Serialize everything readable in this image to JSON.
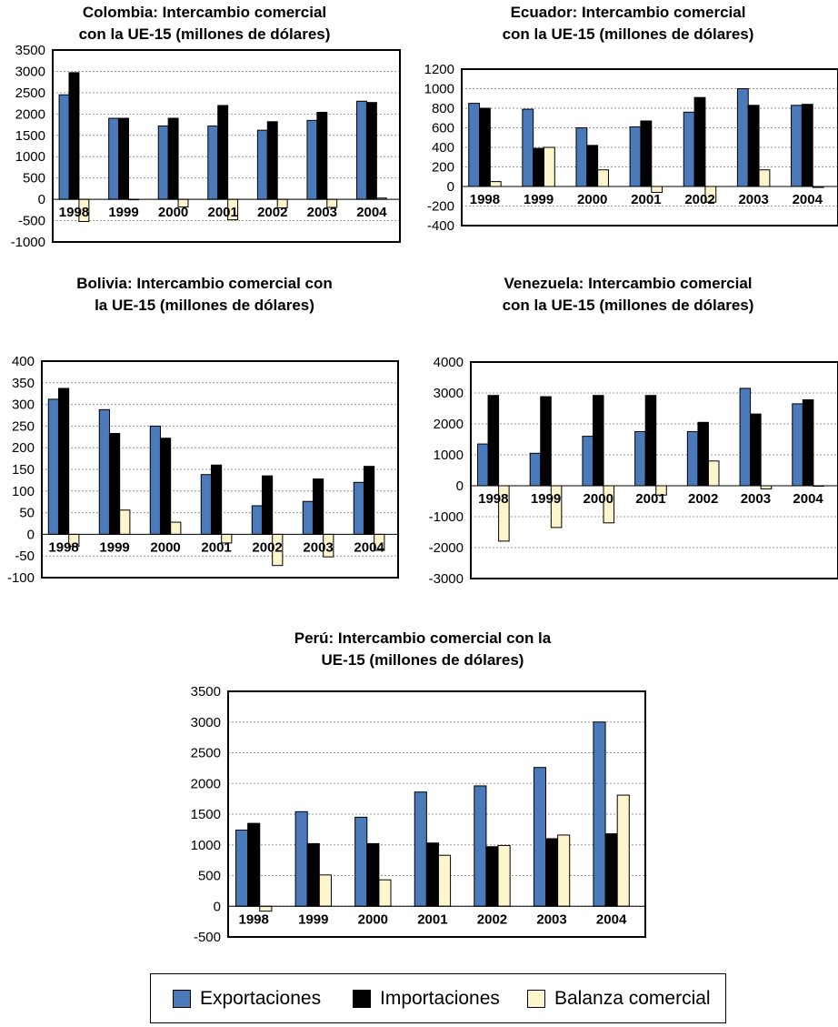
{
  "colors": {
    "exportaciones": "#4a7ab9",
    "importaciones": "#000000",
    "balanza": "#fdf5cc"
  },
  "legend": {
    "items": [
      {
        "label": "Exportaciones",
        "color": "#4a7ab9"
      },
      {
        "label": "Importaciones",
        "color": "#000000"
      },
      {
        "label": "Balanza comercial",
        "color": "#fdf5cc"
      }
    ]
  },
  "chart_data": [
    {
      "type": "bar",
      "title_lines": [
        "Colombia: Intercambio comercial",
        "con la UE-15 (millones de dólares)"
      ],
      "categories": [
        "1998",
        "1999",
        "2000",
        "2001",
        "2002",
        "2003",
        "2004"
      ],
      "ylim": [
        -1000,
        3500
      ],
      "ystep": 500,
      "yticks": [
        "3500",
        "3000",
        "2500",
        "2000",
        "1500",
        "1000",
        "500",
        "0",
        "-500",
        "-1000"
      ],
      "series": [
        {
          "name": "Exportaciones",
          "values": [
            2450,
            1900,
            1720,
            1720,
            1620,
            1850,
            2300
          ]
        },
        {
          "name": "Importaciones",
          "values": [
            2970,
            1900,
            1900,
            2200,
            1820,
            2040,
            2270
          ]
        },
        {
          "name": "Balanza comercial",
          "values": [
            -520,
            -10,
            -180,
            -480,
            -200,
            -190,
            30
          ]
        }
      ]
    },
    {
      "type": "bar",
      "title_lines": [
        "Ecuador: Intercambio comercial",
        "con la UE-15 (millones de dólares)"
      ],
      "categories": [
        "1998",
        "1999",
        "2000",
        "2001",
        "2002",
        "2003",
        "2004"
      ],
      "ylim": [
        -400,
        1200
      ],
      "ystep": 200,
      "yticks": [
        "1200",
        "1000",
        "800",
        "600",
        "400",
        "200",
        "0",
        "-200",
        "-400"
      ],
      "series": [
        {
          "name": "Exportaciones",
          "values": [
            850,
            790,
            600,
            610,
            760,
            1000,
            830
          ]
        },
        {
          "name": "Importaciones",
          "values": [
            800,
            390,
            420,
            670,
            910,
            830,
            840
          ]
        },
        {
          "name": "Balanza comercial",
          "values": [
            50,
            400,
            170,
            -60,
            -160,
            170,
            -10
          ]
        }
      ]
    },
    {
      "type": "bar",
      "title_lines": [
        "Bolivia: Intercambio comercial con",
        "la UE-15  (millones de dólares)"
      ],
      "categories": [
        "1998",
        "1999",
        "2000",
        "2001",
        "2002",
        "2003",
        "2004"
      ],
      "ylim": [
        -100,
        400
      ],
      "ystep": 50,
      "yticks": [
        "400",
        "350",
        "300",
        "250",
        "200",
        "150",
        "100",
        "50",
        "0",
        "-50",
        "-100"
      ],
      "series": [
        {
          "name": "Exportaciones",
          "values": [
            312,
            288,
            250,
            138,
            66,
            76,
            120
          ]
        },
        {
          "name": "Importaciones",
          "values": [
            337,
            233,
            222,
            160,
            135,
            128,
            157
          ]
        },
        {
          "name": "Balanza comercial",
          "values": [
            -28,
            56,
            28,
            -20,
            -72,
            -52,
            -37
          ]
        }
      ]
    },
    {
      "type": "bar",
      "title_lines": [
        "Venezuela: Intercambio comercial",
        "con la UE-15 (millones de dólares)"
      ],
      "categories": [
        "1998",
        "1999",
        "2000",
        "2001",
        "2002",
        "2003",
        "2004"
      ],
      "ylim": [
        -3000,
        4000
      ],
      "ystep": 1000,
      "yticks": [
        "4000",
        "3000",
        "2000",
        "1000",
        "0",
        "-1000",
        "-2000",
        "-3000"
      ],
      "series": [
        {
          "name": "Exportaciones",
          "values": [
            1350,
            1050,
            1600,
            1750,
            1750,
            3150,
            2650
          ]
        },
        {
          "name": "Importaciones",
          "values": [
            2920,
            2880,
            2920,
            2920,
            2050,
            2320,
            2780
          ]
        },
        {
          "name": "Balanza comercial",
          "values": [
            -1790,
            -1350,
            -1200,
            -300,
            800,
            -100,
            0
          ]
        }
      ]
    },
    {
      "type": "bar",
      "title_lines": [
        "Perú: Intercambio comercial con la",
        "UE-15 (millones de dólares)"
      ],
      "categories": [
        "1998",
        "1999",
        "2000",
        "2001",
        "2002",
        "2003",
        "2004"
      ],
      "ylim": [
        -500,
        3500
      ],
      "ystep": 500,
      "yticks": [
        "3500",
        "3000",
        "2500",
        "2000",
        "1500",
        "1000",
        "500",
        "0",
        "-500"
      ],
      "series": [
        {
          "name": "Exportaciones",
          "values": [
            1240,
            1540,
            1450,
            1860,
            1960,
            2260,
            3000
          ]
        },
        {
          "name": "Importaciones",
          "values": [
            1350,
            1020,
            1020,
            1030,
            970,
            1100,
            1180
          ]
        },
        {
          "name": "Balanza comercial",
          "values": [
            -80,
            510,
            430,
            830,
            990,
            1160,
            1810
          ]
        }
      ]
    }
  ]
}
